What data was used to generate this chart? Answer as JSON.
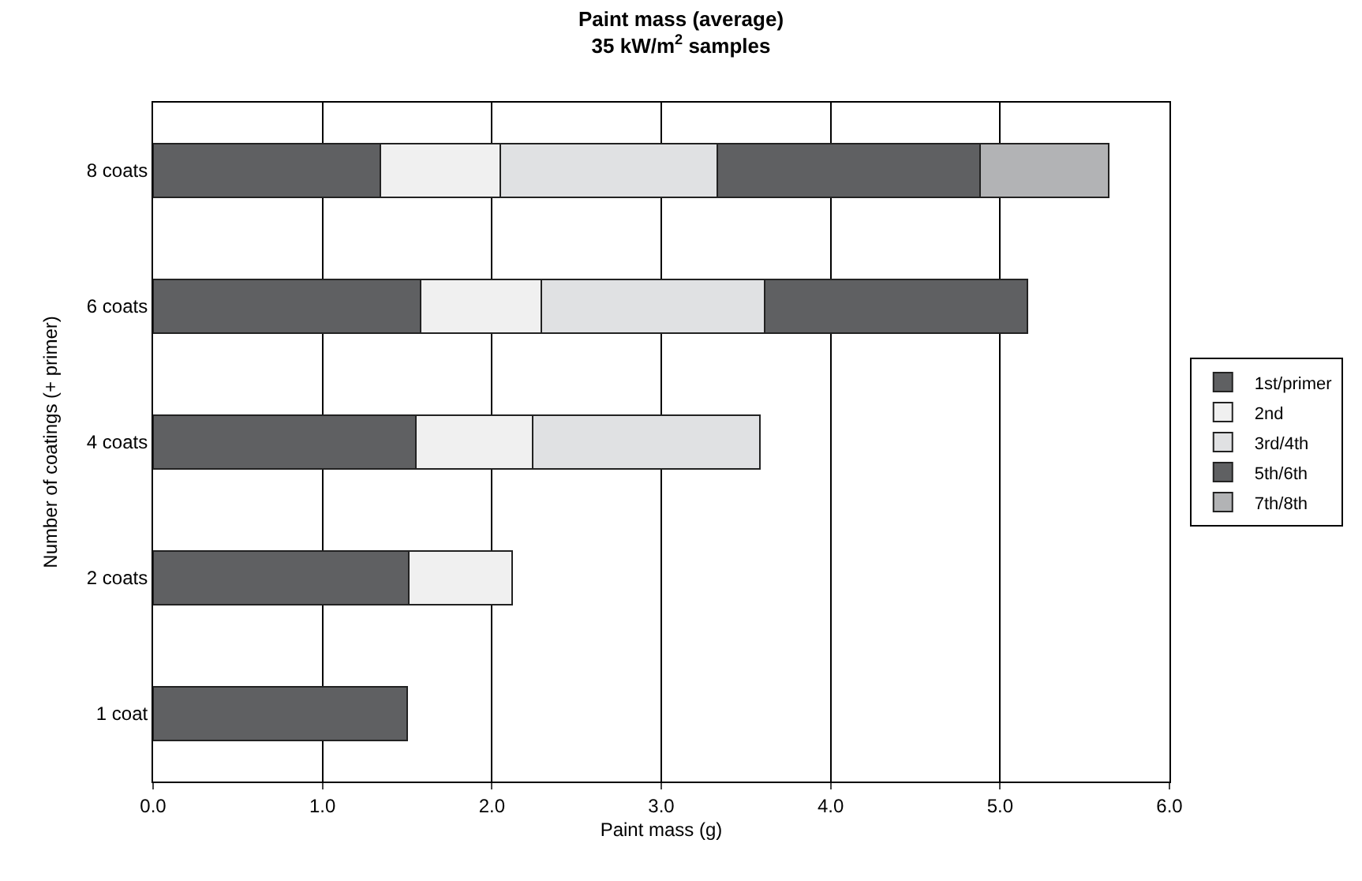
{
  "chart_data": {
    "type": "bar",
    "orientation": "horizontal",
    "stacked": true,
    "title": "Paint mass (average)\n35 kW/m$^{2}$ samples",
    "xlabel": "Paint mass (g)",
    "ylabel": "Number of coatings (+ primer)",
    "categories": [
      "8 coats",
      "6 coats",
      "4 coats",
      "2 coats",
      "1 coat"
    ],
    "series": [
      {
        "name": "1st/primer",
        "color": "#5f6062",
        "values": [
          1.34,
          1.58,
          1.55,
          1.51,
          1.5
        ]
      },
      {
        "name": "2nd",
        "color": "#f0f0f0",
        "values": [
          0.71,
          0.71,
          0.69,
          0.61,
          null
        ]
      },
      {
        "name": "3rd/4th",
        "color": "#e0e1e3",
        "values": [
          1.28,
          1.32,
          1.34,
          null,
          null
        ]
      },
      {
        "name": "5th/6th",
        "color": "#5f6062",
        "values": [
          1.55,
          1.55,
          null,
          null,
          null
        ]
      },
      {
        "name": "7th/8th",
        "color": "#b2b3b5",
        "values": [
          0.76,
          null,
          null,
          null,
          null
        ]
      }
    ],
    "xlim": [
      0,
      6
    ],
    "xticks": [
      {
        "value": 0,
        "label": "0.0"
      },
      {
        "value": 1,
        "label": "1.0"
      },
      {
        "value": 2,
        "label": "2.0"
      },
      {
        "value": 3,
        "label": "3.0"
      },
      {
        "value": 4,
        "label": "4.0"
      },
      {
        "value": 5,
        "label": "5.0"
      },
      {
        "value": 6,
        "label": "6.0"
      }
    ],
    "grid": "x",
    "legend": "right"
  }
}
